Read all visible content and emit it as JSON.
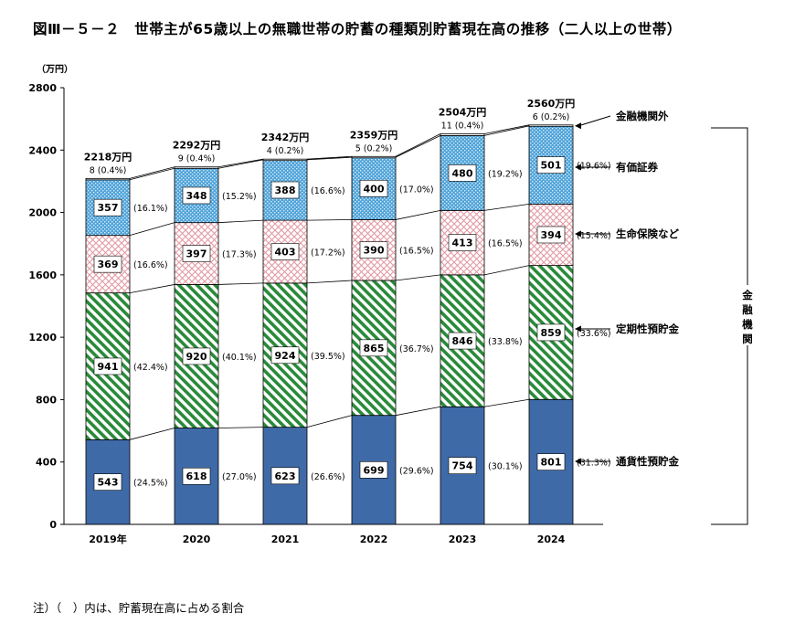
{
  "title": "図Ⅲ－５－２　世帯主が65歳以上の無職世帯の貯蓄の種類別貯蓄現在高の推移（二人以上の世帯）",
  "note": "注）（　）内は、貯蓄現在高に占める割合",
  "chart_data": {
    "type": "bar",
    "stacked": true,
    "y_unit_label": "（万円）",
    "ylim": [
      0,
      2800
    ],
    "yticks": [
      0,
      400,
      800,
      1200,
      1600,
      2000,
      2400,
      2800
    ],
    "grid": false,
    "categories": [
      "2019年",
      "2020",
      "2021",
      "2022",
      "2023",
      "2024"
    ],
    "totals": [
      "2218万円",
      "2292万円",
      "2342万円",
      "2359万円",
      "2504万円",
      "2560万円"
    ],
    "series": [
      {
        "name": "通貨性預貯金",
        "color": "#3f6aa8",
        "pattern": "solid",
        "values": [
          543,
          618,
          623,
          699,
          754,
          801
        ],
        "pct": [
          "(24.5%)",
          "(27.0%)",
          "(26.6%)",
          "(29.6%)",
          "(30.1%)",
          "(31.3%)"
        ]
      },
      {
        "name": "定期性預貯金",
        "color": "#2a8a3a",
        "pattern": "diagonal-stripes",
        "values": [
          941,
          920,
          924,
          865,
          846,
          859
        ],
        "pct": [
          "(42.4%)",
          "(40.1%)",
          "(39.5%)",
          "(36.7%)",
          "(33.8%)",
          "(33.6%)"
        ]
      },
      {
        "name": "生命保険など",
        "color": "#e8a0a8",
        "pattern": "crosshatch",
        "values": [
          369,
          397,
          403,
          390,
          413,
          394
        ],
        "pct": [
          "(16.6%)",
          "(17.3%)",
          "(17.2%)",
          "(16.5%)",
          "(16.5%)",
          "(15.4%)"
        ]
      },
      {
        "name": "有価証券",
        "color": "#5aa8dc",
        "pattern": "dots",
        "values": [
          357,
          348,
          388,
          400,
          480,
          501
        ],
        "pct": [
          "(16.1%)",
          "(15.2%)",
          "(16.6%)",
          "(17.0%)",
          "(19.2%)",
          "(19.6%)"
        ]
      },
      {
        "name": "金融機関外",
        "color": "#ffffff",
        "pattern": "outline",
        "values": [
          8,
          9,
          4,
          5,
          11,
          6
        ],
        "pct": [
          "(0.4%)",
          "(0.4%)",
          "(0.2%)",
          "(0.2%)",
          "(0.4%)",
          "(0.2%)"
        ]
      }
    ],
    "bracket_label": "金融機関"
  }
}
